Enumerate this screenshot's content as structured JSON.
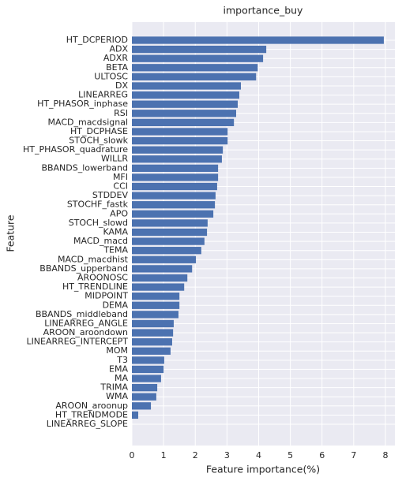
{
  "chart_data": {
    "type": "barh",
    "title": "importance_buy",
    "x_label": "Feature importance(%)",
    "y_label": "Feature",
    "categories": [
      "HT_DCPERIOD",
      "ADX",
      "ADXR",
      "BETA",
      "ULTOSC",
      "DX",
      "LINEARREG",
      "HT_PHASOR_inphase",
      "RSI",
      "MACD_macdsignal",
      "HT_DCPHASE",
      "STOCH_slowk",
      "HT_PHASOR_quadrature",
      "WILLR",
      "BBANDS_lowerband",
      "MFI",
      "CCI",
      "STDDEV",
      "STOCHF_fastk",
      "APO",
      "STOCH_slowd",
      "KAMA",
      "MACD_macd",
      "TEMA",
      "MACD_macdhist",
      "BBANDS_upperband",
      "AROONOSC",
      "HT_TRENDLINE",
      "MIDPOINT",
      "DEMA",
      "BBANDS_middleband",
      "LINEARREG_ANGLE",
      "AROON_aroondown",
      "LINEARREG_INTERCEPT",
      "MOM",
      "T3",
      "EMA",
      "MA",
      "TRIMA",
      "WMA",
      "AROON_aroonup",
      "HT_TRENDMODE",
      "LINEARREG_SLOPE"
    ],
    "values": [
      7.95,
      4.24,
      4.14,
      3.97,
      3.92,
      3.44,
      3.39,
      3.34,
      3.29,
      3.22,
      3.02,
      3.02,
      2.87,
      2.84,
      2.72,
      2.72,
      2.69,
      2.64,
      2.62,
      2.57,
      2.39,
      2.37,
      2.29,
      2.19,
      2.02,
      1.9,
      1.75,
      1.65,
      1.5,
      1.5,
      1.47,
      1.32,
      1.3,
      1.27,
      1.22,
      1.02,
      1.0,
      0.92,
      0.8,
      0.77,
      0.6,
      0.2,
      0
    ],
    "color": "#4c72b0",
    "xlim": [
      0,
      8.3
    ],
    "xticks": [
      0,
      1,
      2,
      3,
      4,
      5,
      6,
      7,
      8
    ],
    "grid": true
  }
}
